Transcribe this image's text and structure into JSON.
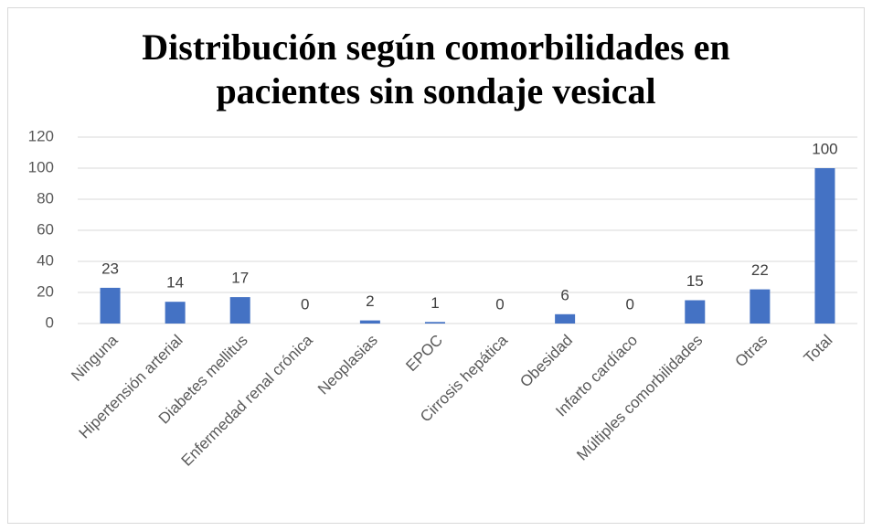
{
  "chart_data": {
    "type": "bar",
    "title": "Distribución según comorbilidades en pacientes sin sondaje vesical",
    "categories": [
      "Ninguna",
      "Hipertensión arterial",
      "Diabetes mellitus",
      "Enfermedad renal crónica",
      "Neoplasias",
      "EPOC",
      "Cirrosis hepática",
      "Obesidad",
      "Infarto cardíaco",
      "Múltiples comorbilidades",
      "Otras",
      "Total"
    ],
    "values": [
      23,
      14,
      17,
      0,
      2,
      1,
      0,
      6,
      0,
      15,
      22,
      100
    ],
    "color": "#4472c4",
    "ylim": [
      0,
      120
    ],
    "yticks": [
      0,
      20,
      40,
      60,
      80,
      100,
      120
    ],
    "grid": true,
    "data_labels": true
  }
}
